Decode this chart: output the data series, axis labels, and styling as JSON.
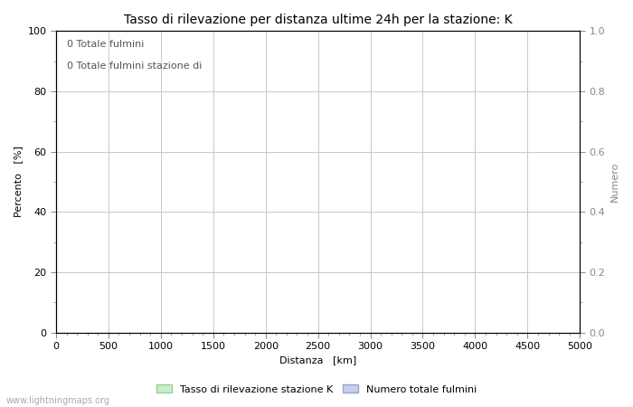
{
  "title": "Tasso di rilevazione per distanza ultime 24h per la stazione: K",
  "xlabel": "Distanza   [km]",
  "ylabel_left": "Percento   [%]",
  "ylabel_right": "Numero",
  "annotation_line1": "0 Totale fulmini",
  "annotation_line2": "0 Totale fulmini stazione di",
  "xlim": [
    0,
    5000
  ],
  "ylim_left": [
    0,
    100
  ],
  "ylim_right": [
    0,
    1.0
  ],
  "xticks_major": [
    0,
    500,
    1000,
    1500,
    2000,
    2500,
    3000,
    3500,
    4000,
    4500,
    5000
  ],
  "yticks_left_major": [
    0,
    20,
    40,
    60,
    80,
    100
  ],
  "yticks_left_minor": [
    10,
    30,
    50,
    70,
    90
  ],
  "yticks_right_major": [
    0.0,
    0.2,
    0.4,
    0.6,
    0.8,
    1.0
  ],
  "yticks_right_minor": [
    0.1,
    0.3,
    0.5,
    0.7,
    0.9
  ],
  "ytick_labels_left": [
    "0",
    "20",
    "40",
    "60",
    "80",
    "100"
  ],
  "ytick_labels_right": [
    "0.0",
    "0.2",
    "0.4",
    "0.6",
    "0.8",
    "1.0"
  ],
  "legend_label1": "Tasso di rilevazione stazione K",
  "legend_label2": "Numero totale fulmini",
  "legend_color1": "#c8f0c8",
  "legend_color2": "#c8d0f0",
  "legend_edge1": "#a0c8a0",
  "legend_edge2": "#a0a0d0",
  "grid_color": "#c8c8c8",
  "background_color": "#ffffff",
  "watermark": "www.lightningmaps.org",
  "title_fontsize": 10,
  "label_fontsize": 8,
  "tick_fontsize": 8,
  "annotation_fontsize": 8,
  "watermark_fontsize": 7
}
